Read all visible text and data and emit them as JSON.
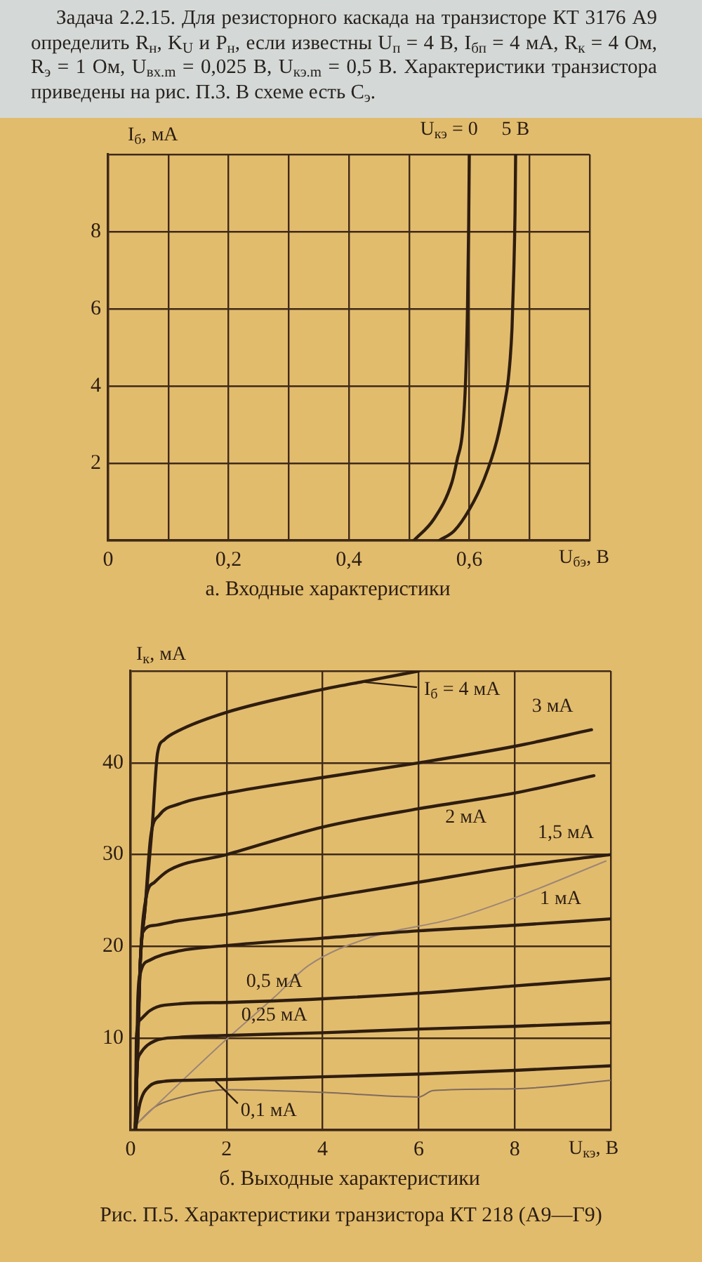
{
  "chart_data": [
    {
      "type": "line",
      "title": "а. Входные характеристики",
      "xlabel": "U$_{бэ}$, В",
      "ylabel": "I$_{б}$, мА",
      "annotations": [
        "Задача 2.2.15. Для резисторного каскада на транзисторе КТ 3176 А9 определить R$_{н}$, K$_{U}$ и P$_{н}$, если известны U$_{п}$ = 4 В, I$_{бп}$ = 4 мА, R$_{к}$ = 4 Ом, R$_{э}$ = 1 Ом, U$_{вх.m}$ = 0,025 В, U$_{кэ.m}$ = 0,5 В. Характеристики транзистора приведены на рис. П.3. В схеме есть C$_{э}$."
      ],
      "series": [
        {
          "name": "U$_{кэ}$ = 0",
          "color": "#2e1d10",
          "x": [
            0.508,
            0.541,
            0.571,
            0.58,
            0.589,
            0.594,
            0.597,
            0.599,
            0.6
          ],
          "values": [
            0,
            0.55,
            1.5,
            2.1,
            2.85,
            4.2,
            6,
            8.2,
            10
          ]
        },
        {
          "name": "5 В",
          "color": "#2e1d10",
          "x": [
            0.55,
            0.575,
            0.6,
            0.625,
            0.646,
            0.658,
            0.665,
            0.671,
            0.674,
            0.676,
            0.677
          ],
          "values": [
            0,
            0.25,
            0.8,
            1.6,
            2.6,
            3.5,
            4.2,
            5.5,
            7,
            8.5,
            10
          ]
        }
      ],
      "xlim": [
        0,
        0.8
      ],
      "ylim": [
        0,
        10
      ],
      "xticks": [
        0,
        {
          "value": 0.1,
          "label": null
        },
        {
          "value": 0.2,
          "label": "0,2"
        },
        {
          "value": 0.3,
          "label": null
        },
        {
          "value": 0.4,
          "label": "0,4"
        },
        {
          "value": 0.5,
          "label": null
        },
        {
          "value": 0.6,
          "label": "0,6"
        },
        {
          "value": 0.7,
          "label": null
        },
        {
          "value": 0.8,
          "label": null
        }
      ],
      "yticks": [
        {
          "value": 0,
          "label": null
        },
        2,
        4,
        6,
        8,
        {
          "value": 10,
          "label": null
        }
      ],
      "grid": true
    },
    {
      "type": "line",
      "title": "б. Выходные характеристики",
      "xlabel": "U$_{кэ}$, В",
      "ylabel": "I$_{к}$, мА",
      "annotations": [
        "Рис. П.5. Характеристики транзистора КТ 218 (А9—Г9)"
      ],
      "series": [
        {
          "name": "I$_{б}$ = 4 мА",
          "color": "#2e1d10",
          "x": [
            0.1,
            0.2,
            0.3,
            0.45,
            0.56,
            0.7,
            1,
            2,
            4,
            5,
            6
          ],
          "values": [
            0,
            18,
            24,
            33,
            41,
            42.5,
            43.5,
            45.5,
            48,
            49,
            50
          ]
        },
        {
          "name": "3 мА",
          "color": "#2e1d10",
          "x": [
            0.1,
            0.2,
            0.3,
            0.42,
            0.6,
            1,
            2,
            4,
            6,
            8,
            9.6
          ],
          "values": [
            0,
            18,
            24,
            32,
            34.3,
            35.5,
            36.7,
            38.4,
            40,
            41.8,
            43.6
          ]
        },
        {
          "name": "2 мА",
          "color": "#2e1d10",
          "x": [
            0.1,
            0.2,
            0.33,
            0.5,
            0.8,
            2,
            4,
            6,
            8,
            9.65
          ],
          "values": [
            0,
            18,
            25.5,
            27,
            28.3,
            30,
            33,
            35,
            36.7,
            38.6
          ]
        },
        {
          "name": "1,5 мА",
          "color": "#2e1d10",
          "x": [
            0.1,
            0.2,
            0.25,
            0.5,
            1,
            2,
            4,
            6,
            8,
            10
          ],
          "values": [
            0,
            18,
            21.5,
            22.3,
            22.8,
            23.5,
            25.3,
            27,
            28.7,
            30
          ]
        },
        {
          "name": "1 мА",
          "color": "#2e1d10",
          "x": [
            0.1,
            0.15,
            0.2,
            0.4,
            1,
            2,
            4,
            6,
            8,
            10
          ],
          "values": [
            0,
            14,
            17,
            18.5,
            19.5,
            20.1,
            20.9,
            21.7,
            22.3,
            23
          ]
        },
        {
          "name": "0,5 мА",
          "color": "#2e1d10",
          "x": [
            0.1,
            0.12,
            0.2,
            0.4,
            0.7,
            2,
            4,
            6,
            8,
            10
          ],
          "values": [
            0,
            10,
            12,
            13,
            13.6,
            13.9,
            14.3,
            14.9,
            15.7,
            16.5
          ]
        },
        {
          "name": "0,25 мА",
          "color": "#2e1d10",
          "x": [
            0.1,
            0.12,
            0.2,
            0.5,
            1,
            2,
            4,
            6,
            8,
            10
          ],
          "values": [
            0,
            6,
            8.3,
            9.7,
            10.1,
            10.3,
            10.6,
            11,
            11.3,
            11.7
          ]
        },
        {
          "name": "0,1 мА",
          "color": "#2e1d10",
          "x": [
            0.1,
            0.2,
            0.4,
            0.7,
            1,
            2,
            4,
            6,
            8,
            10
          ],
          "values": [
            0,
            3,
            4.8,
            5.3,
            5.4,
            5.5,
            5.8,
            6.1,
            6.5,
            7
          ]
        },
        {
          "color": "#9c8676",
          "x": [
            0.1,
            1,
            2,
            3,
            3.7,
            5,
            6.7,
            8,
            9.9
          ],
          "values": [
            0.5,
            5,
            9.9,
            14.5,
            17.9,
            21,
            23,
            25.3,
            29.3
          ]
        },
        {
          "color": "#7f6b5d",
          "x": [
            0.1,
            0.5,
            1,
            2,
            4,
            6,
            6.3,
            8,
            10
          ],
          "values": [
            0.5,
            2.5,
            3.5,
            4.4,
            4.1,
            3.6,
            4.3,
            4.5,
            5.4
          ]
        }
      ],
      "xlim": [
        0,
        10
      ],
      "ylim": [
        0,
        50
      ],
      "xticks": [
        0,
        2,
        4,
        6,
        8,
        {
          "value": 10,
          "label": null
        }
      ],
      "yticks": [
        {
          "value": 0,
          "label": null
        },
        10,
        20,
        30,
        40,
        {
          "value": 50,
          "label": null
        }
      ],
      "grid": true
    }
  ]
}
